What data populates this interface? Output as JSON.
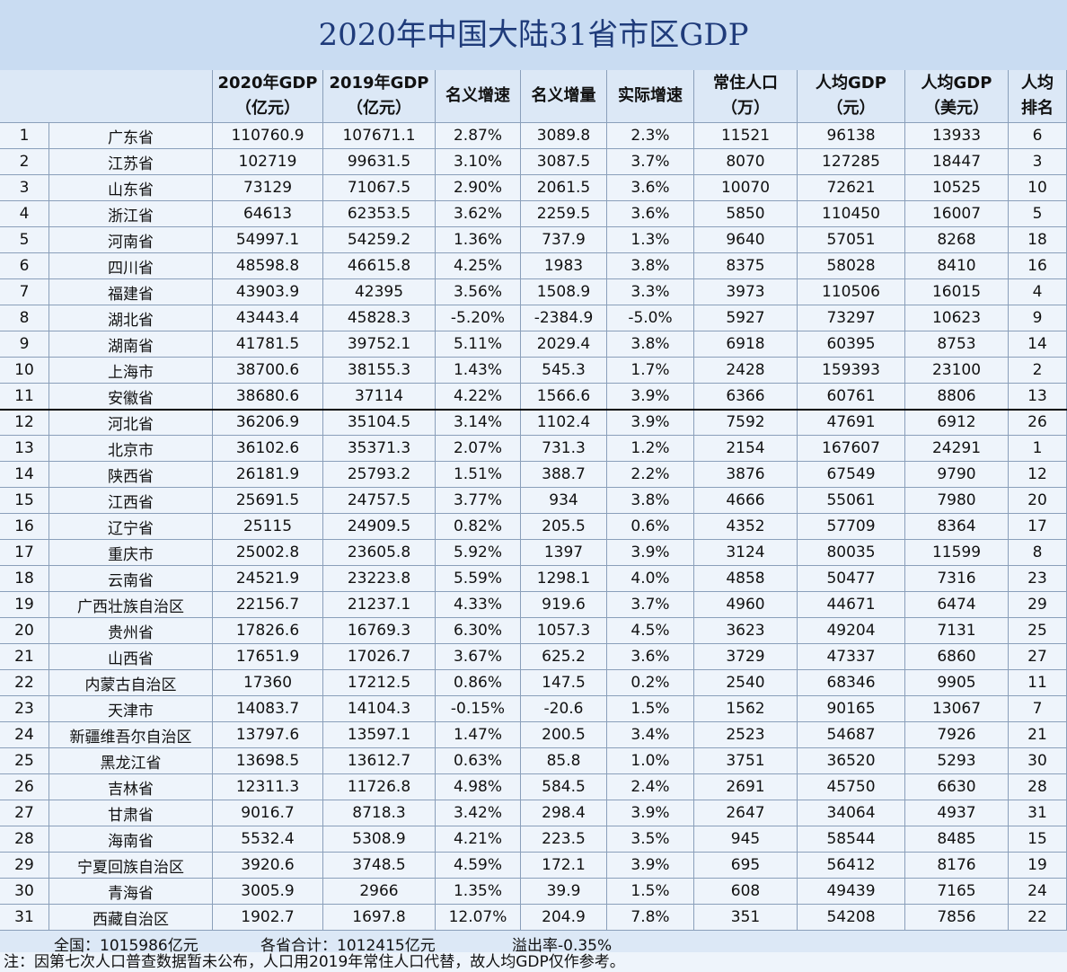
{
  "title": "2020年中国大陆31省市区GDP",
  "header": [
    [
      "2020年GDP",
      "（亿元）"
    ],
    [
      "2019年GDP",
      "（亿元）"
    ],
    [
      "名义增速"
    ],
    [
      "名义增量"
    ],
    [
      "实际增速"
    ],
    [
      "常住人口",
      "（万）"
    ],
    [
      "人均GDP",
      "（元）"
    ],
    [
      "人均GDP",
      "（美元）"
    ],
    [
      "人均",
      "排名"
    ]
  ],
  "rows": [
    [
      "1",
      "广东省",
      "110760.9",
      "107671.1",
      "2.87%",
      "3089.8",
      "2.3%",
      "11521",
      "96138",
      "13933",
      "6"
    ],
    [
      "2",
      "江苏省",
      "102719",
      "99631.5",
      "3.10%",
      "3087.5",
      "3.7%",
      "8070",
      "127285",
      "18447",
      "3"
    ],
    [
      "3",
      "山东省",
      "73129",
      "71067.5",
      "2.90%",
      "2061.5",
      "3.6%",
      "10070",
      "72621",
      "10525",
      "10"
    ],
    [
      "4",
      "浙江省",
      "64613",
      "62353.5",
      "3.62%",
      "2259.5",
      "3.6%",
      "5850",
      "110450",
      "16007",
      "5"
    ],
    [
      "5",
      "河南省",
      "54997.1",
      "54259.2",
      "1.36%",
      "737.9",
      "1.3%",
      "9640",
      "57051",
      "8268",
      "18"
    ],
    [
      "6",
      "四川省",
      "48598.8",
      "46615.8",
      "4.25%",
      "1983",
      "3.8%",
      "8375",
      "58028",
      "8410",
      "16"
    ],
    [
      "7",
      "福建省",
      "43903.9",
      "42395",
      "3.56%",
      "1508.9",
      "3.3%",
      "3973",
      "110506",
      "16015",
      "4"
    ],
    [
      "8",
      "湖北省",
      "43443.4",
      "45828.3",
      "-5.20%",
      "-2384.9",
      "-5.0%",
      "5927",
      "73297",
      "10623",
      "9"
    ],
    [
      "9",
      "湖南省",
      "41781.5",
      "39752.1",
      "5.11%",
      "2029.4",
      "3.8%",
      "6918",
      "60395",
      "8753",
      "14"
    ],
    [
      "10",
      "上海市",
      "38700.6",
      "38155.3",
      "1.43%",
      "545.3",
      "1.7%",
      "2428",
      "159393",
      "23100",
      "2"
    ],
    [
      "11",
      "安徽省",
      "38680.6",
      "37114",
      "4.22%",
      "1566.6",
      "3.9%",
      "6366",
      "60761",
      "8806",
      "13"
    ],
    [
      "12",
      "河北省",
      "36206.9",
      "35104.5",
      "3.14%",
      "1102.4",
      "3.9%",
      "7592",
      "47691",
      "6912",
      "26"
    ],
    [
      "13",
      "北京市",
      "36102.6",
      "35371.3",
      "2.07%",
      "731.3",
      "1.2%",
      "2154",
      "167607",
      "24291",
      "1"
    ],
    [
      "14",
      "陕西省",
      "26181.9",
      "25793.2",
      "1.51%",
      "388.7",
      "2.2%",
      "3876",
      "67549",
      "9790",
      "12"
    ],
    [
      "15",
      "江西省",
      "25691.5",
      "24757.5",
      "3.77%",
      "934",
      "3.8%",
      "4666",
      "55061",
      "7980",
      "20"
    ],
    [
      "16",
      "辽宁省",
      "25115",
      "24909.5",
      "0.82%",
      "205.5",
      "0.6%",
      "4352",
      "57709",
      "8364",
      "17"
    ],
    [
      "17",
      "重庆市",
      "25002.8",
      "23605.8",
      "5.92%",
      "1397",
      "3.9%",
      "3124",
      "80035",
      "11599",
      "8"
    ],
    [
      "18",
      "云南省",
      "24521.9",
      "23223.8",
      "5.59%",
      "1298.1",
      "4.0%",
      "4858",
      "50477",
      "7316",
      "23"
    ],
    [
      "19",
      "广西壮族自治区",
      "22156.7",
      "21237.1",
      "4.33%",
      "919.6",
      "3.7%",
      "4960",
      "44671",
      "6474",
      "29"
    ],
    [
      "20",
      "贵州省",
      "17826.6",
      "16769.3",
      "6.30%",
      "1057.3",
      "4.5%",
      "3623",
      "49204",
      "7131",
      "25"
    ],
    [
      "21",
      "山西省",
      "17651.9",
      "17026.7",
      "3.67%",
      "625.2",
      "3.6%",
      "3729",
      "47337",
      "6860",
      "27"
    ],
    [
      "22",
      "内蒙古自治区",
      "17360",
      "17212.5",
      "0.86%",
      "147.5",
      "0.2%",
      "2540",
      "68346",
      "9905",
      "11"
    ],
    [
      "23",
      "天津市",
      "14083.7",
      "14104.3",
      "-0.15%",
      "-20.6",
      "1.5%",
      "1562",
      "90165",
      "13067",
      "7"
    ],
    [
      "24",
      "新疆维吾尔自治区",
      "13797.6",
      "13597.1",
      "1.47%",
      "200.5",
      "3.4%",
      "2523",
      "54687",
      "7926",
      "21"
    ],
    [
      "25",
      "黑龙江省",
      "13698.5",
      "13612.7",
      "0.63%",
      "85.8",
      "1.0%",
      "3751",
      "36520",
      "5293",
      "30"
    ],
    [
      "26",
      "吉林省",
      "12311.3",
      "11726.8",
      "4.98%",
      "584.5",
      "2.4%",
      "2691",
      "45750",
      "6630",
      "28"
    ],
    [
      "27",
      "甘肃省",
      "9016.7",
      "8718.3",
      "3.42%",
      "298.4",
      "3.9%",
      "2647",
      "34064",
      "4937",
      "31"
    ],
    [
      "28",
      "海南省",
      "5532.4",
      "5308.9",
      "4.21%",
      "223.5",
      "3.5%",
      "945",
      "58544",
      "8485",
      "15"
    ],
    [
      "29",
      "宁夏回族自治区",
      "3920.6",
      "3748.5",
      "4.59%",
      "172.1",
      "3.9%",
      "695",
      "56412",
      "8176",
      "19"
    ],
    [
      "30",
      "青海省",
      "3005.9",
      "2966",
      "1.35%",
      "39.9",
      "1.5%",
      "608",
      "49439",
      "7165",
      "24"
    ],
    [
      "31",
      "西藏自治区",
      "1902.7",
      "1697.8",
      "12.07%",
      "204.9",
      "7.8%",
      "351",
      "54208",
      "7856",
      "22"
    ]
  ],
  "footer": [
    "全国：1015986亿元",
    "各省合计：1012415亿元",
    "溢出率-0.35%"
  ],
  "note": "注：因第七次人口普查数据暂未公布，人口用2019年常住人口代替，故人均GDP仅作参考。"
}
